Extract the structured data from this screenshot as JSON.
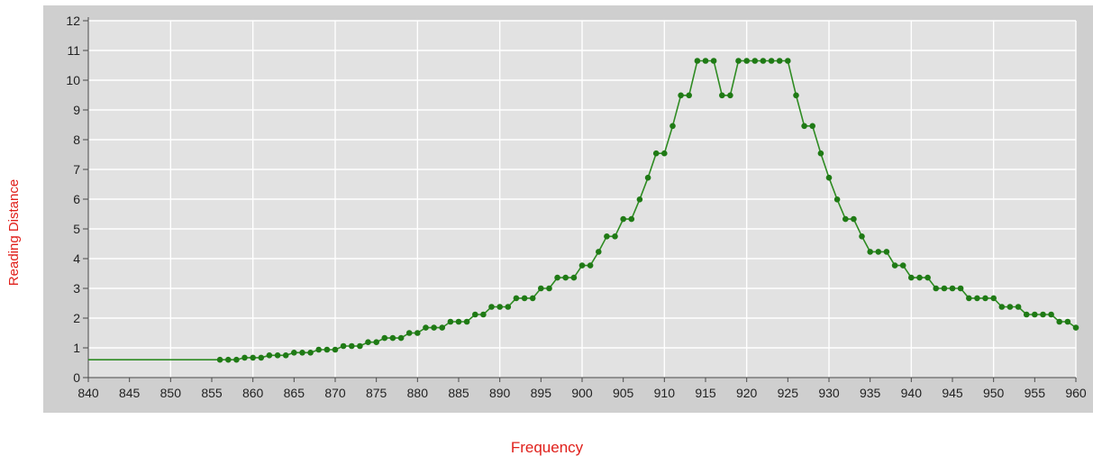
{
  "chart_data": {
    "type": "line",
    "title": "",
    "xlabel": "Frequency",
    "ylabel": "Reading Distance",
    "xlim": [
      840,
      960
    ],
    "ylim": [
      0,
      12
    ],
    "xticks": [
      840,
      845,
      850,
      855,
      860,
      865,
      870,
      875,
      880,
      885,
      890,
      895,
      900,
      905,
      910,
      915,
      920,
      925,
      930,
      935,
      940,
      945,
      950,
      955,
      960
    ],
    "yticks": [
      0,
      1,
      2,
      3,
      4,
      5,
      6,
      7,
      8,
      9,
      10,
      11,
      12
    ],
    "grid": true,
    "legend": "none",
    "colors": {
      "line": "#2e8b22",
      "marker": "#1f7a15",
      "plot_bg": "#e2e2e2",
      "frame_bg": "#cfcfcf",
      "grid": "#ffffff"
    },
    "series": [
      {
        "x": [
          840,
          856,
          857,
          858,
          859,
          860,
          861,
          862,
          863,
          864,
          865,
          866,
          867,
          868,
          869,
          870,
          871,
          872,
          873,
          874,
          875,
          876,
          877,
          878,
          879,
          880,
          881,
          882,
          883,
          884,
          885,
          886,
          887,
          888,
          889,
          890,
          891,
          892,
          893,
          894,
          895,
          896,
          897,
          898,
          899,
          900,
          901,
          902,
          903,
          904,
          905,
          906,
          907,
          908,
          909,
          910,
          911,
          912,
          913,
          914,
          915,
          916,
          917,
          918,
          919,
          920,
          921,
          922,
          923,
          924,
          925,
          926,
          927,
          928,
          929,
          930,
          931,
          932,
          933,
          934,
          935,
          936,
          937,
          938,
          939,
          940,
          941,
          942,
          943,
          944,
          945,
          946,
          947,
          948,
          949,
          950,
          951,
          952,
          953,
          954,
          955,
          956,
          957,
          958,
          959,
          960
        ],
        "y": [
          0.6,
          0.6,
          0.6,
          0.6,
          0.67,
          0.67,
          0.67,
          0.75,
          0.75,
          0.75,
          0.84,
          0.84,
          0.84,
          0.94,
          0.94,
          0.94,
          1.06,
          1.06,
          1.06,
          1.19,
          1.19,
          1.33,
          1.33,
          1.33,
          1.5,
          1.5,
          1.68,
          1.68,
          1.68,
          1.88,
          1.88,
          1.88,
          2.12,
          2.12,
          2.38,
          2.38,
          2.38,
          2.67,
          2.67,
          2.67,
          3.0,
          3.0,
          3.36,
          3.36,
          3.36,
          3.77,
          3.77,
          4.23,
          4.75,
          4.75,
          5.33,
          5.33,
          5.99,
          6.72,
          7.54,
          7.54,
          8.46,
          9.49,
          9.49,
          10.65,
          10.65,
          10.65,
          9.49,
          9.49,
          10.65,
          10.65,
          10.65,
          10.65,
          10.65,
          10.65,
          10.65,
          9.49,
          8.46,
          8.46,
          7.54,
          6.72,
          5.99,
          5.33,
          5.33,
          4.75,
          4.23,
          4.23,
          4.23,
          3.77,
          3.77,
          3.36,
          3.36,
          3.36,
          3.0,
          3.0,
          3.0,
          3.0,
          2.67,
          2.67,
          2.67,
          2.67,
          2.38,
          2.38,
          2.38,
          2.12,
          2.12,
          2.12,
          2.12,
          1.88,
          1.88,
          1.68
        ],
        "marker_start": 1
      }
    ]
  }
}
